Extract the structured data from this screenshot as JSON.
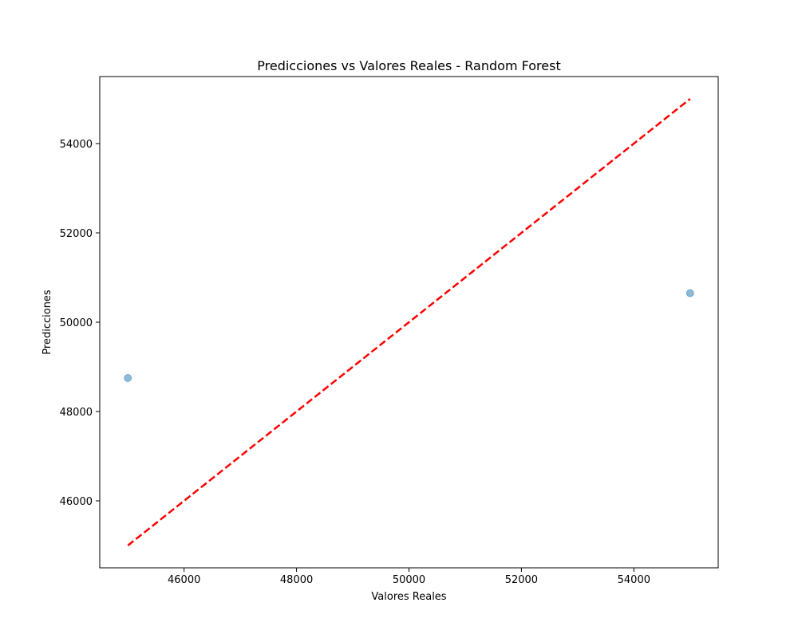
{
  "chart_data": {
    "type": "scatter",
    "title": "Predicciones vs Valores Reales - Random Forest",
    "xlabel": "Valores Reales",
    "ylabel": "Predicciones",
    "xlim": [
      44500,
      55500
    ],
    "ylim": [
      44500,
      55500
    ],
    "xticks": [
      46000,
      48000,
      50000,
      52000,
      54000
    ],
    "yticks": [
      46000,
      48000,
      50000,
      52000,
      54000
    ],
    "grid": false,
    "series": [
      {
        "type": "scatter",
        "color": "#1f77b4",
        "alpha": 0.5,
        "points": [
          {
            "x": 45000,
            "y": 48750
          },
          {
            "x": 55000,
            "y": 50650
          }
        ]
      },
      {
        "type": "line",
        "style": "dashed",
        "color": "#ff0000",
        "points": [
          {
            "x": 45000,
            "y": 45000
          },
          {
            "x": 55000,
            "y": 55000
          }
        ]
      }
    ]
  }
}
